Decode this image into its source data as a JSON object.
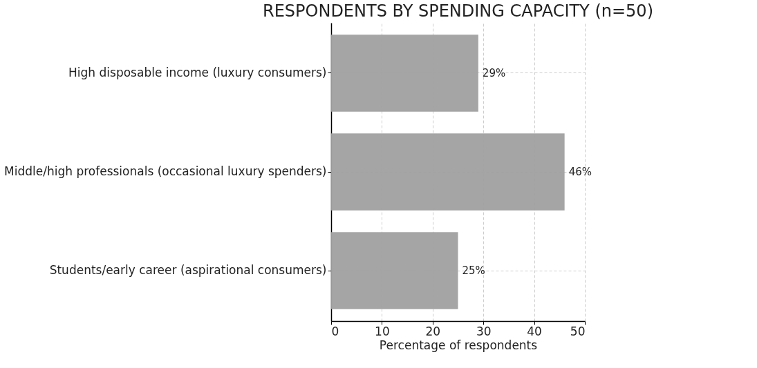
{
  "chart_data": {
    "type": "bar",
    "orientation": "horizontal",
    "title": "RESPONDENTS BY SPENDING CAPACITY (n=50)",
    "xlabel": "Percentage of respondents",
    "categories": [
      "High disposable income (luxury consumers)",
      "Middle/high professionals (occasional luxury spenders)",
      "Students/early career (aspirational consumers)"
    ],
    "values": [
      29,
      46,
      25
    ],
    "color": "#a0a0a0",
    "value_labels": [
      "29%",
      "46%",
      "25%"
    ],
    "xlim": [
      0,
      50
    ],
    "xticks": [
      0,
      10,
      20,
      30,
      40,
      50
    ],
    "grid": true
  }
}
